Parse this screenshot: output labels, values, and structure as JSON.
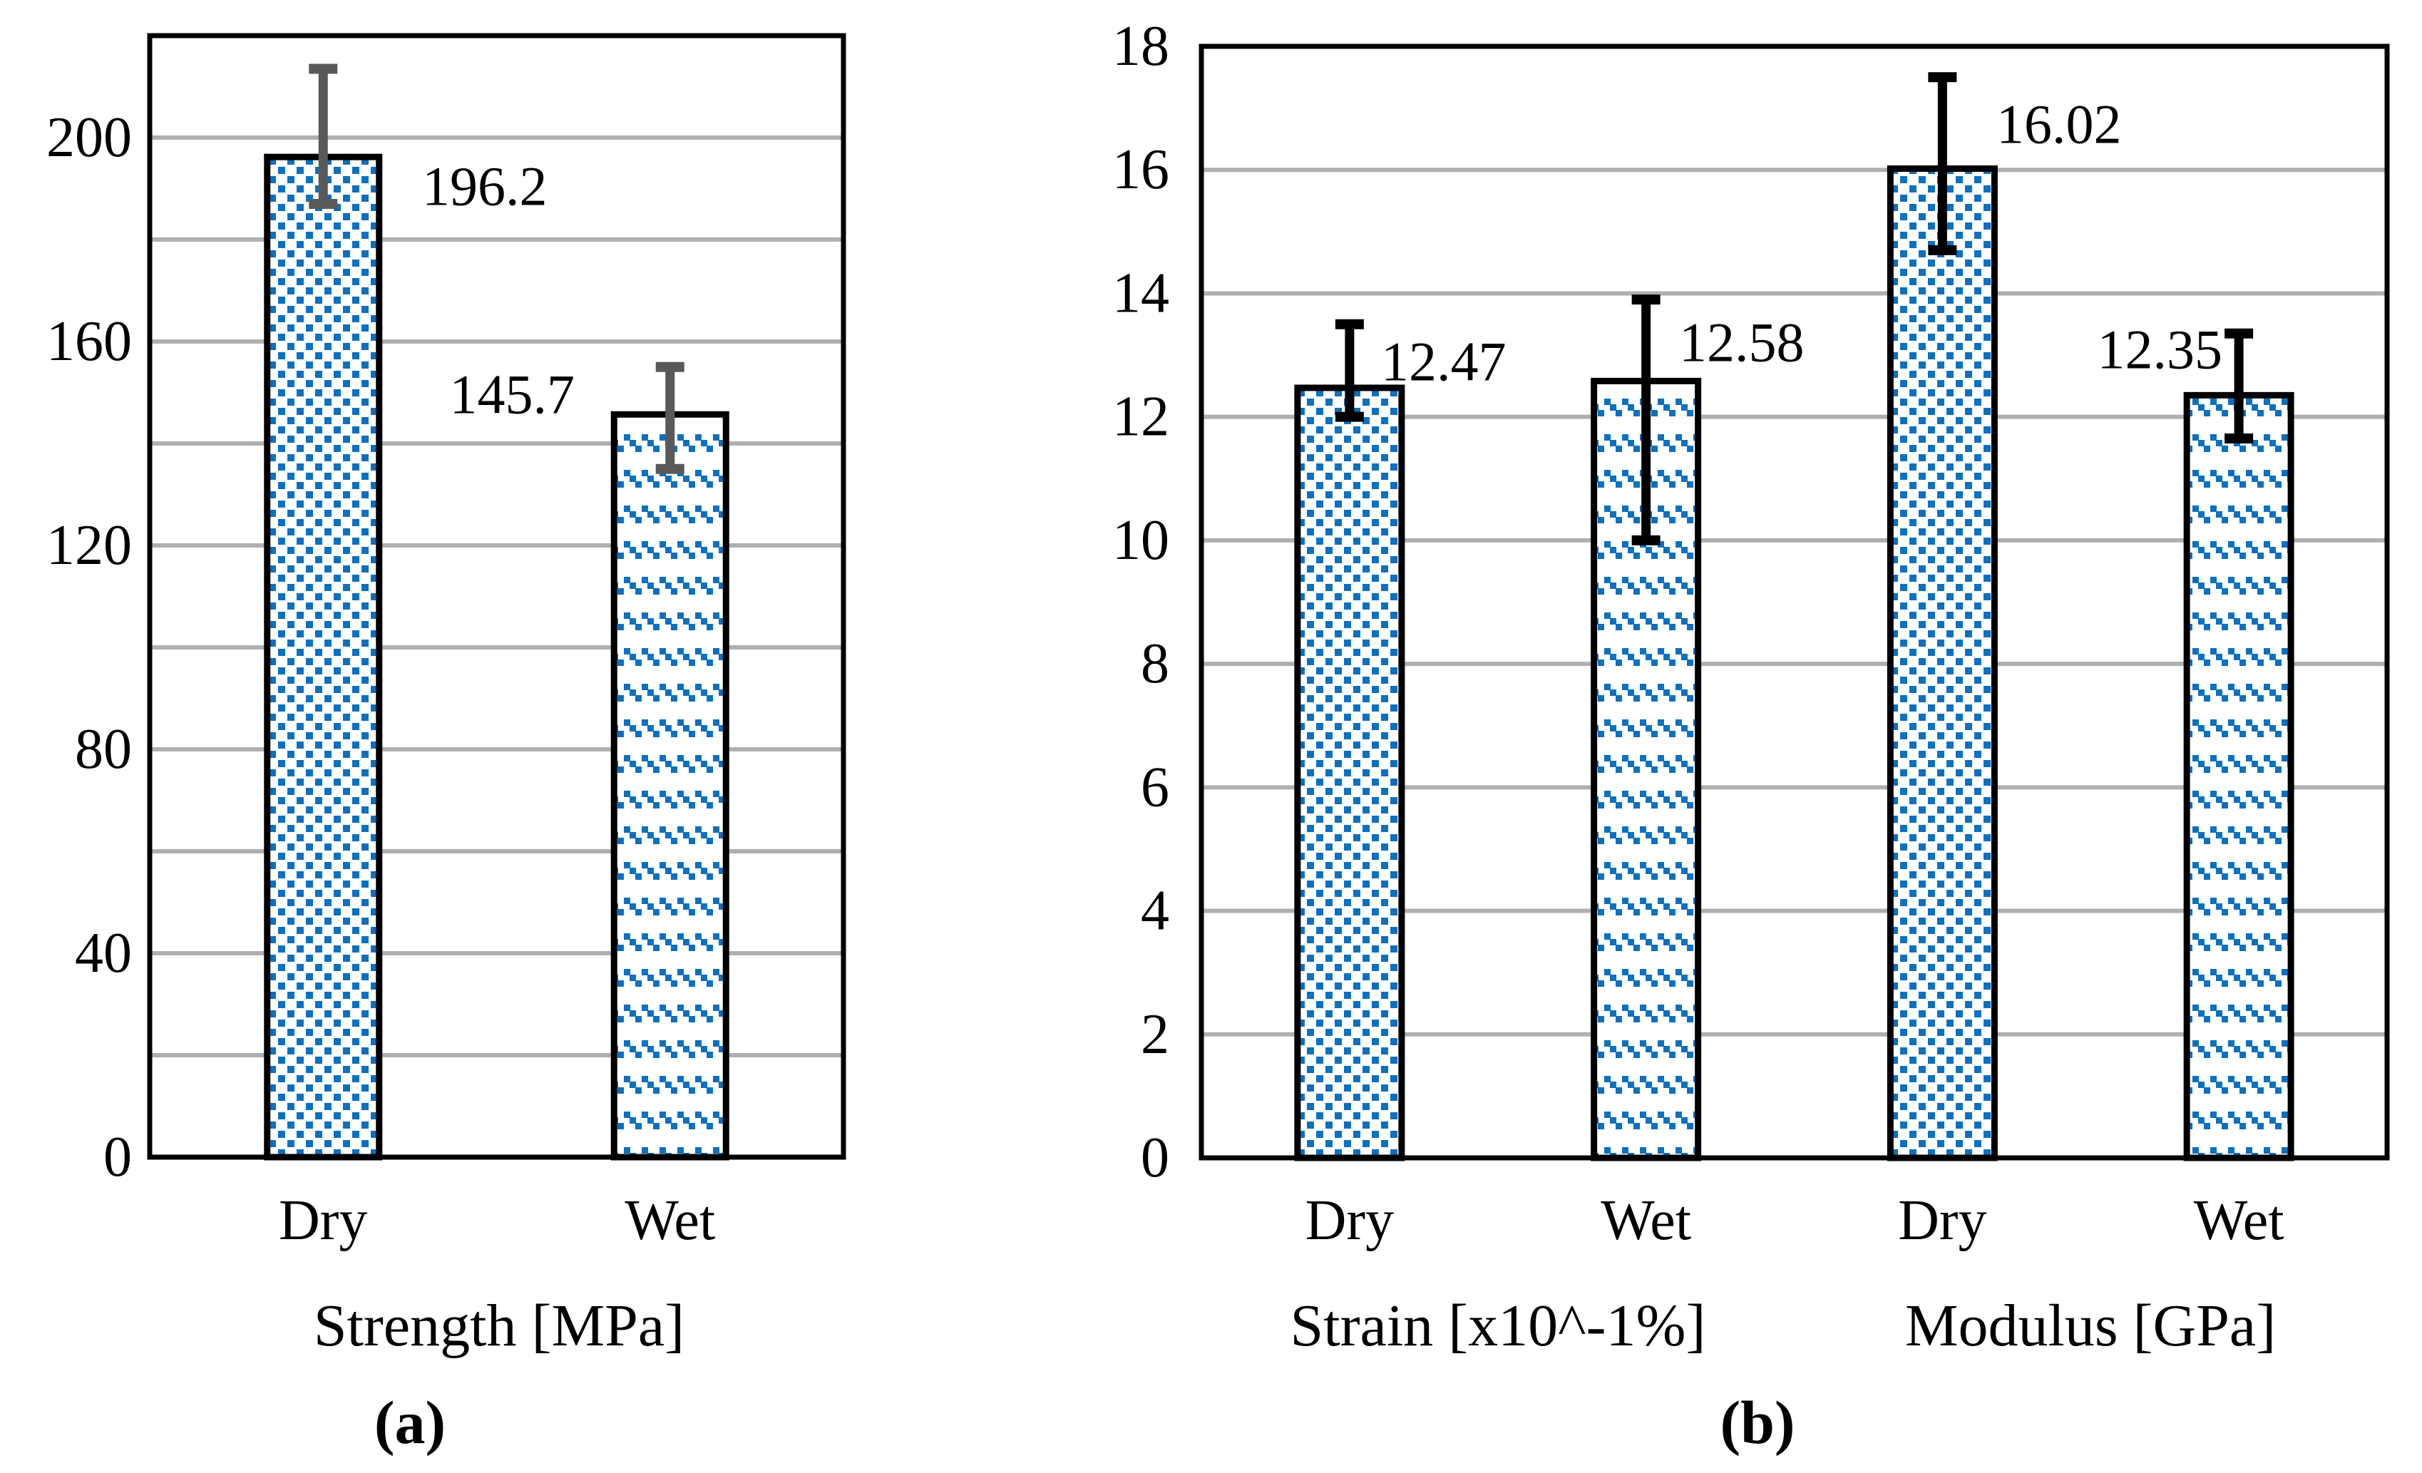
{
  "figure": {
    "background": "#ffffff"
  },
  "colors": {
    "bar_hatch_blue": "#0C70C0",
    "bar_fill_background": "#ffffff",
    "bar_border": "#000000",
    "plot_border": "#000000",
    "gridline": "#AFAFAF",
    "error_bar_a": "#595959",
    "error_bar_b": "#000000",
    "text": "#000000"
  },
  "chart_data": [
    {
      "id": "a",
      "type": "bar",
      "caption": "(a)",
      "xlabel": "Strength [MPa]",
      "ylabel": "",
      "ylim": [
        0,
        220
      ],
      "grid": "horizontal",
      "grid_step": 20,
      "legend": "none",
      "yticks": [
        "0",
        "40",
        "80",
        "120",
        "160",
        "200"
      ],
      "categories": [
        "Dry",
        "Wet"
      ],
      "bars": [
        {
          "category": "Dry",
          "value": 196.2,
          "label": "196.2",
          "hatch": "diagonal",
          "err_top": 213.5,
          "err_bottom": 187.0
        },
        {
          "category": "Wet",
          "value": 145.7,
          "label": "145.7",
          "hatch": "dash",
          "err_top": 155.0,
          "err_bottom": 135.0
        }
      ]
    },
    {
      "id": "b",
      "type": "bar",
      "caption": "(b)",
      "xlabel": "",
      "group_labels": [
        "Strain [x10^-1%]",
        "Modulus [GPa]"
      ],
      "ylim": [
        0,
        18
      ],
      "grid": "horizontal",
      "grid_step": 2,
      "legend": "none",
      "yticks": [
        "0",
        "2",
        "4",
        "6",
        "8",
        "10",
        "12",
        "14",
        "16",
        "18"
      ],
      "categories": [
        "Dry",
        "Wet",
        "Dry",
        "Wet"
      ],
      "bars": [
        {
          "category": "Dry",
          "group": "Strain [x10^-1%]",
          "value": 12.47,
          "label": "12.47",
          "hatch": "diagonal",
          "err_top": 13.5,
          "err_bottom": 12.0
        },
        {
          "category": "Wet",
          "group": "Strain [x10^-1%]",
          "value": 12.58,
          "label": "12.58",
          "hatch": "dash",
          "err_top": 13.9,
          "err_bottom": 10.0
        },
        {
          "category": "Dry",
          "group": "Modulus [GPa]",
          "value": 16.02,
          "label": "16.02",
          "hatch": "diagonal",
          "err_top": 17.5,
          "err_bottom": 14.7
        },
        {
          "category": "Wet",
          "group": "Modulus [GPa]",
          "value": 12.35,
          "label": "12.35",
          "hatch": "dash",
          "err_top": 13.35,
          "err_bottom": 11.65
        }
      ]
    }
  ]
}
